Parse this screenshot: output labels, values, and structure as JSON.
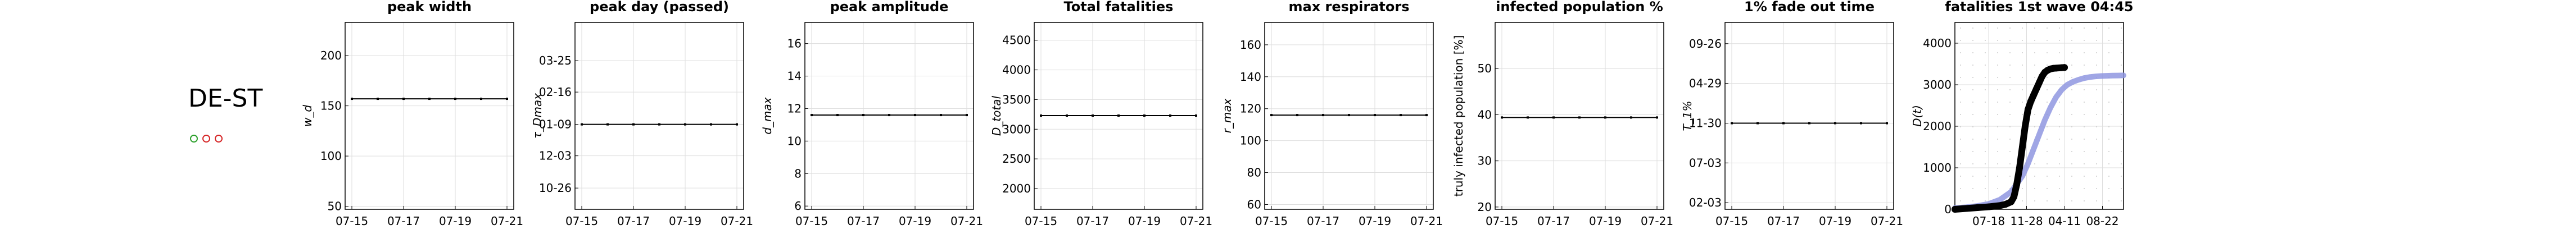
{
  "region_label": "DE-ST",
  "status_dots": [
    {
      "name": "status-dot-1",
      "color": "#2ca02c"
    },
    {
      "name": "status-dot-2",
      "color": "#d62728"
    },
    {
      "name": "status-dot-3",
      "color": "#d62728"
    }
  ],
  "chart_data": [
    {
      "type": "line",
      "title": "peak width",
      "ylabel": "w_d",
      "x": [
        "07-15",
        "07-16",
        "07-17",
        "07-18",
        "07-19",
        "07-20",
        "07-21"
      ],
      "xticks": [
        "07-15",
        "07-17",
        "07-19",
        "07-21"
      ],
      "yticks": [
        "50",
        "100",
        "150",
        "200"
      ],
      "yticks_values": [
        50,
        100,
        150,
        200
      ],
      "ylim": [
        47,
        233
      ],
      "series": [
        {
          "values": [
            157,
            157,
            157,
            157,
            157,
            157,
            157
          ]
        }
      ],
      "grid": true
    },
    {
      "type": "line",
      "title": "peak day (passed)",
      "ylabel": "τ_Dmax",
      "x": [
        "07-15",
        "07-16",
        "07-17",
        "07-18",
        "07-19",
        "07-20",
        "07-21"
      ],
      "xticks": [
        "07-15",
        "07-17",
        "07-19",
        "07-21"
      ],
      "yticks": [
        "10-26",
        "12-03",
        "01-09",
        "02-16",
        "03-25"
      ],
      "yticks_values": [
        0,
        38,
        75,
        113,
        150
      ],
      "ylim": [
        -25,
        195
      ],
      "series": [
        {
          "values": [
            75,
            75,
            75,
            75,
            75,
            75,
            75
          ]
        }
      ],
      "grid": true
    },
    {
      "type": "line",
      "title": "peak amplitude",
      "ylabel": "d_max",
      "x": [
        "07-15",
        "07-16",
        "07-17",
        "07-18",
        "07-19",
        "07-20",
        "07-21"
      ],
      "xticks": [
        "07-15",
        "07-17",
        "07-19",
        "07-21"
      ],
      "yticks": [
        "6",
        "8",
        "10",
        "12",
        "14",
        "16"
      ],
      "yticks_values": [
        6,
        8,
        10,
        12,
        14,
        16
      ],
      "ylim": [
        5.8,
        17.3
      ],
      "series": [
        {
          "values": [
            11.6,
            11.6,
            11.6,
            11.6,
            11.6,
            11.6,
            11.6
          ]
        }
      ],
      "grid": true
    },
    {
      "type": "line",
      "title": "Total fatalities",
      "ylabel": "D_total",
      "x": [
        "07-15",
        "07-16",
        "07-17",
        "07-18",
        "07-19",
        "07-20",
        "07-21"
      ],
      "xticks": [
        "07-15",
        "07-17",
        "07-19",
        "07-21"
      ],
      "yticks": [
        "2000",
        "2500",
        "3000",
        "3500",
        "4000",
        "4500"
      ],
      "yticks_values": [
        2000,
        2500,
        3000,
        3500,
        4000,
        4500
      ],
      "ylim": [
        1650,
        4800
      ],
      "series": [
        {
          "values": [
            3230,
            3230,
            3230,
            3230,
            3230,
            3230,
            3230
          ]
        }
      ],
      "grid": true
    },
    {
      "type": "line",
      "title": "max respirators",
      "ylabel": "r_max",
      "x": [
        "07-15",
        "07-16",
        "07-17",
        "07-18",
        "07-19",
        "07-20",
        "07-21"
      ],
      "xticks": [
        "07-15",
        "07-17",
        "07-19",
        "07-21"
      ],
      "yticks": [
        "60",
        "80",
        "100",
        "120",
        "140",
        "160"
      ],
      "yticks_values": [
        60,
        80,
        100,
        120,
        140,
        160
      ],
      "ylim": [
        57,
        174
      ],
      "series": [
        {
          "values": [
            116,
            116,
            116,
            116,
            116,
            116,
            116
          ]
        }
      ],
      "grid": true
    },
    {
      "type": "line",
      "title": "infected population %",
      "ylabel": "truly infected population [%]",
      "x": [
        "07-15",
        "07-16",
        "07-17",
        "07-18",
        "07-19",
        "07-20",
        "07-21"
      ],
      "xticks": [
        "07-15",
        "07-17",
        "07-19",
        "07-21"
      ],
      "yticks": [
        "20",
        "30",
        "40",
        "50"
      ],
      "yticks_values": [
        20,
        30,
        40,
        50
      ],
      "ylim": [
        19.5,
        60
      ],
      "series": [
        {
          "values": [
            39.4,
            39.4,
            39.4,
            39.4,
            39.4,
            39.4,
            39.4
          ]
        }
      ],
      "grid": true
    },
    {
      "type": "line",
      "title": "1% fade out time",
      "ylabel": "T_1%",
      "x": [
        "07-15",
        "07-16",
        "07-17",
        "07-18",
        "07-19",
        "07-20",
        "07-21"
      ],
      "xticks": [
        "07-15",
        "07-17",
        "07-19",
        "07-21"
      ],
      "yticks": [
        "02-03",
        "07-03",
        "11-30",
        "04-29",
        "09-26"
      ],
      "yticks_values": [
        0,
        150,
        300,
        450,
        600
      ],
      "ylim": [
        -25,
        680
      ],
      "series": [
        {
          "values": [
            300,
            300,
            300,
            300,
            300,
            300,
            300
          ]
        }
      ],
      "grid": true
    },
    {
      "type": "scatter",
      "title": "fatalities 1st wave 04:45",
      "ylabel": "D(t)",
      "xticks": [
        "07-18",
        "11-28",
        "04-11",
        "08-22"
      ],
      "xticks_values": [
        120,
        255,
        390,
        525
      ],
      "xlim": [
        0,
        600
      ],
      "yticks": [
        "0",
        "1000",
        "2000",
        "3000",
        "4000"
      ],
      "yticks_values": [
        0,
        1000,
        2000,
        3000,
        4000
      ],
      "ylim": [
        0,
        4500
      ],
      "grid": true,
      "series": [
        {
          "kind": "band",
          "color": "#8f96e0",
          "x": [
            0,
            40,
            80,
            120,
            160,
            200,
            240,
            260,
            280,
            300,
            320,
            340,
            360,
            380,
            400,
            420,
            440,
            460,
            480,
            500,
            520,
            540,
            560,
            580,
            600
          ],
          "y": [
            30,
            50,
            80,
            130,
            230,
            420,
            800,
            1100,
            1450,
            1800,
            2150,
            2450,
            2700,
            2880,
            3000,
            3070,
            3120,
            3160,
            3185,
            3200,
            3210,
            3215,
            3220,
            3222,
            3225
          ]
        },
        {
          "kind": "observed",
          "color": "#000000",
          "x": [
            0,
            40,
            80,
            120,
            160,
            180,
            200,
            210,
            220,
            230,
            240,
            250,
            260,
            270,
            280,
            290,
            300,
            310,
            320,
            330,
            340,
            350,
            360,
            370,
            380,
            390
          ],
          "y": [
            0,
            20,
            40,
            60,
            90,
            120,
            180,
            300,
            600,
            1000,
            1500,
            2000,
            2400,
            2600,
            2750,
            2900,
            3050,
            3200,
            3300,
            3350,
            3380,
            3395,
            3400,
            3405,
            3410,
            3415
          ]
        }
      ]
    }
  ]
}
